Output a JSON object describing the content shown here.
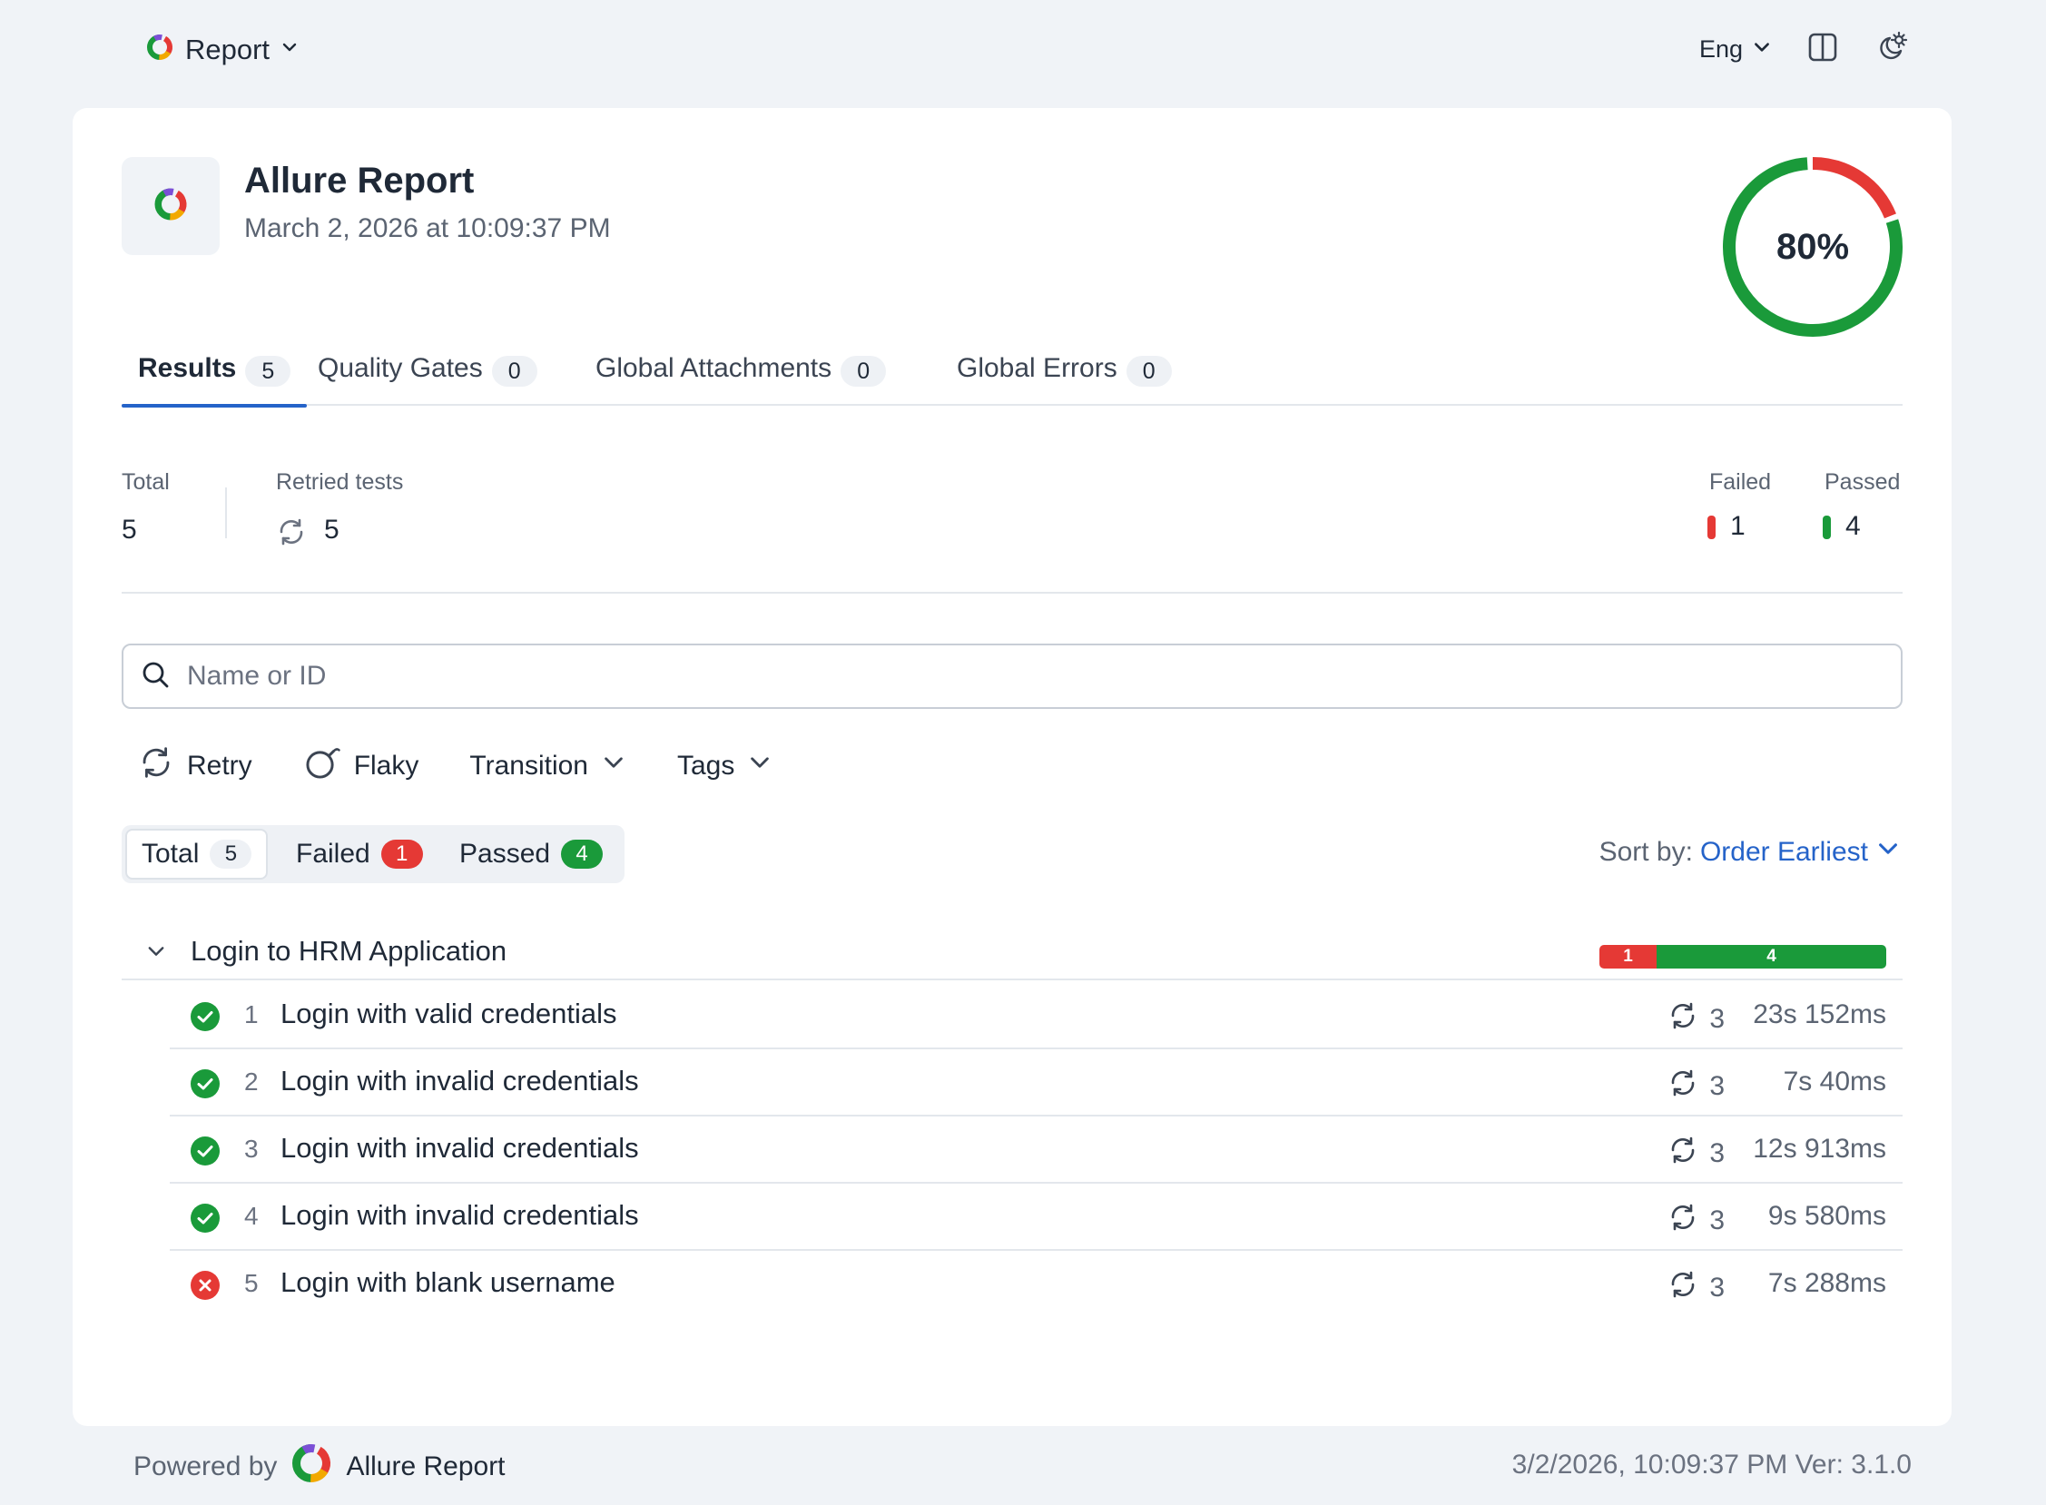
{
  "topbar": {
    "report_label": "Report",
    "language": "Eng"
  },
  "header": {
    "title": "Allure Report",
    "datetime": "March 2, 2026 at 10:09:37 PM",
    "pass_rate_label": "80%",
    "pass_rate": 0.8
  },
  "tabs": [
    {
      "label": "Results",
      "count": "5"
    },
    {
      "label": "Quality Gates",
      "count": "0"
    },
    {
      "label": "Global Attachments",
      "count": "0"
    },
    {
      "label": "Global Errors",
      "count": "0"
    }
  ],
  "stats": {
    "total_label": "Total",
    "total_value": "5",
    "retried_label": "Retried tests",
    "retried_value": "5",
    "failed_label": "Failed",
    "failed_value": "1",
    "passed_label": "Passed",
    "passed_value": "4"
  },
  "search": {
    "placeholder": "Name or ID"
  },
  "filters": {
    "retry": "Retry",
    "flaky": "Flaky",
    "transition": "Transition",
    "tags": "Tags"
  },
  "segments": [
    {
      "label": "Total",
      "count": "5"
    },
    {
      "label": "Failed",
      "count": "1"
    },
    {
      "label": "Passed",
      "count": "4"
    }
  ],
  "sort": {
    "label": "Sort by:",
    "value": "Order Earliest"
  },
  "group": {
    "title": "Login to HRM Application",
    "failed_count": "1",
    "passed_count": "4"
  },
  "tests": [
    {
      "status": "passed",
      "num": "1",
      "name": "Login with valid credentials",
      "retries": "3",
      "duration": "23s 152ms"
    },
    {
      "status": "passed",
      "num": "2",
      "name": "Login with invalid credentials",
      "retries": "3",
      "duration": "7s 40ms"
    },
    {
      "status": "passed",
      "num": "3",
      "name": "Login with invalid credentials",
      "retries": "3",
      "duration": "12s 913ms"
    },
    {
      "status": "passed",
      "num": "4",
      "name": "Login with invalid credentials",
      "retries": "3",
      "duration": "9s 580ms"
    },
    {
      "status": "failed",
      "num": "5",
      "name": "Login with blank username",
      "retries": "3",
      "duration": "7s 288ms"
    }
  ],
  "footer": {
    "powered_by": "Powered by",
    "brand": "Allure Report",
    "timestamp_version": "3/2/2026, 10:09:37 PM Ver: 3.1.0"
  },
  "colors": {
    "passed": "#1a9a3a",
    "failed": "#e53935",
    "accent": "#2563c9"
  }
}
